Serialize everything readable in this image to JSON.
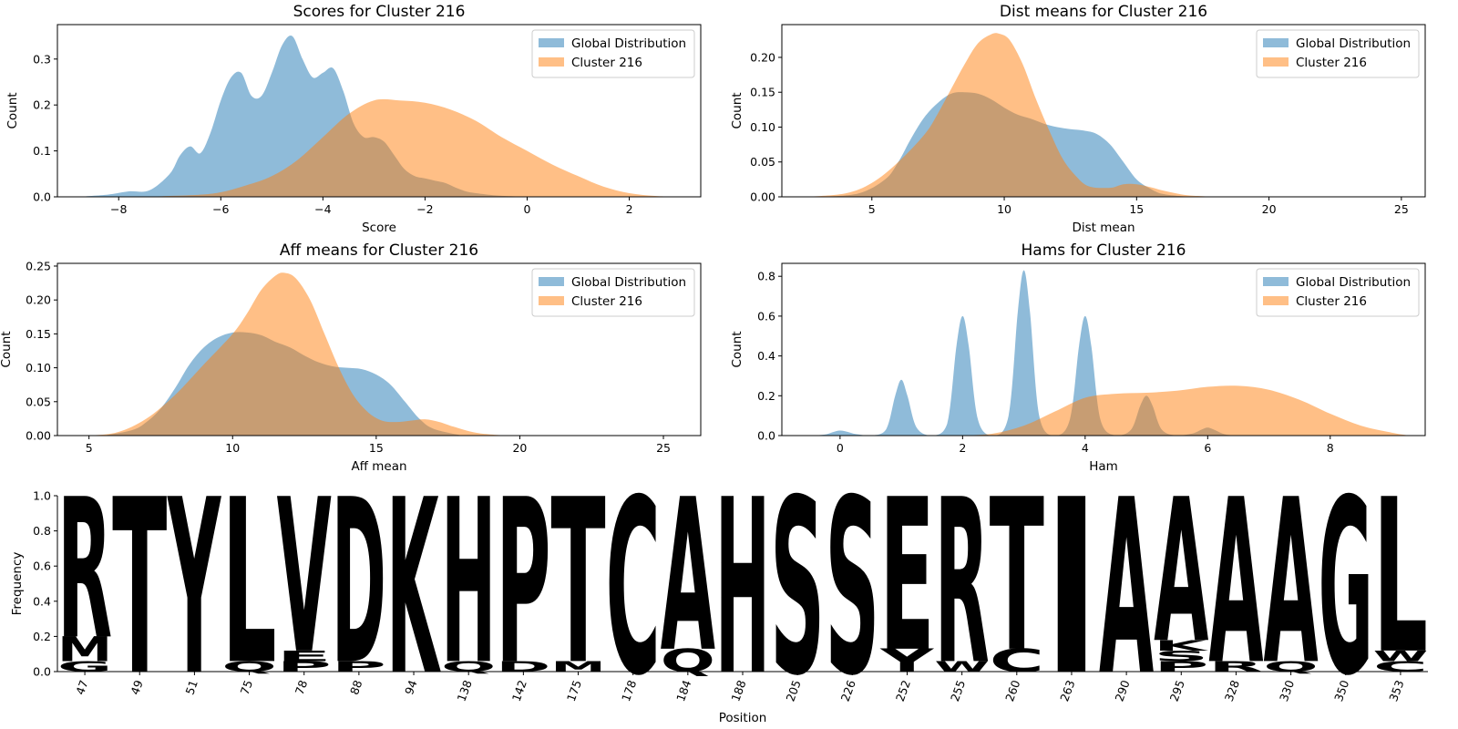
{
  "colors": {
    "global": "#1f77b4",
    "cluster": "#ff7f0e",
    "aa_blue": "#0000ff",
    "aa_green": "#008000",
    "aa_black": "#000000",
    "aa_red": "#ff0000",
    "aa_purple": "#800080"
  },
  "chart_data": [
    {
      "type": "area",
      "title": "Scores for Cluster 216",
      "xlabel": "Score",
      "ylabel": "Count",
      "xlim": [
        -9.2,
        3.4
      ],
      "ylim": [
        0,
        0.375
      ],
      "xticks": [
        -8,
        -6,
        -4,
        -2,
        0,
        2
      ],
      "yticks": [
        0.0,
        0.1,
        0.2,
        0.3
      ],
      "legend": "top-right",
      "series": [
        {
          "name": "Global Distribution",
          "x": [
            -8.8,
            -8.2,
            -7.8,
            -7.4,
            -7.0,
            -6.8,
            -6.6,
            -6.4,
            -6.2,
            -6.0,
            -5.8,
            -5.6,
            -5.4,
            -5.2,
            -5.0,
            -4.8,
            -4.6,
            -4.4,
            -4.2,
            -4.0,
            -3.8,
            -3.6,
            -3.4,
            -3.2,
            -3.0,
            -2.8,
            -2.6,
            -2.4,
            -2.2,
            -2.0,
            -1.8,
            -1.6,
            -1.4,
            -1.2,
            -1.0,
            -0.6,
            0.0
          ],
          "y": [
            0.0,
            0.005,
            0.012,
            0.014,
            0.05,
            0.09,
            0.11,
            0.095,
            0.14,
            0.21,
            0.26,
            0.27,
            0.22,
            0.22,
            0.27,
            0.33,
            0.35,
            0.3,
            0.26,
            0.27,
            0.28,
            0.23,
            0.16,
            0.13,
            0.13,
            0.12,
            0.09,
            0.06,
            0.045,
            0.04,
            0.035,
            0.03,
            0.02,
            0.012,
            0.008,
            0.003,
            0.0
          ]
        },
        {
          "name": "Cluster 216",
          "x": [
            -7.6,
            -6.5,
            -6.0,
            -5.5,
            -5.0,
            -4.5,
            -4.0,
            -3.5,
            -3.0,
            -2.5,
            -2.0,
            -1.5,
            -1.0,
            -0.5,
            0.0,
            0.5,
            1.0,
            1.5,
            2.0,
            2.5,
            3.0
          ],
          "y": [
            0.0,
            0.004,
            0.01,
            0.025,
            0.045,
            0.08,
            0.13,
            0.18,
            0.21,
            0.21,
            0.205,
            0.19,
            0.165,
            0.13,
            0.1,
            0.07,
            0.045,
            0.022,
            0.008,
            0.002,
            0.0
          ]
        }
      ]
    },
    {
      "type": "area",
      "title": "Dist means for Cluster 216",
      "xlabel": "Dist mean",
      "ylabel": "Count",
      "xlim": [
        1.6,
        25.9
      ],
      "ylim": [
        0,
        0.247
      ],
      "xticks": [
        5,
        10,
        15,
        20,
        25
      ],
      "yticks": [
        0.0,
        0.05,
        0.1,
        0.15,
        0.2
      ],
      "legend": "top-right",
      "series": [
        {
          "name": "Global Distribution",
          "x": [
            3.0,
            4.5,
            5.5,
            6.0,
            6.5,
            7.0,
            7.5,
            8.0,
            8.5,
            9.0,
            9.5,
            10.0,
            10.5,
            11.0,
            11.5,
            12.0,
            12.5,
            13.0,
            13.5,
            14.0,
            14.5,
            15.0,
            15.5,
            16.0,
            17.0
          ],
          "y": [
            0.0,
            0.005,
            0.025,
            0.05,
            0.085,
            0.115,
            0.135,
            0.148,
            0.15,
            0.148,
            0.14,
            0.128,
            0.118,
            0.112,
            0.105,
            0.1,
            0.097,
            0.095,
            0.09,
            0.075,
            0.05,
            0.025,
            0.012,
            0.004,
            0.0
          ]
        },
        {
          "name": "Cluster 216",
          "x": [
            2.5,
            4.0,
            5.0,
            6.0,
            7.0,
            7.5,
            8.0,
            8.5,
            9.0,
            9.5,
            9.8,
            10.2,
            10.7,
            11.2,
            11.7,
            12.2,
            12.7,
            13.2,
            14.0,
            14.5,
            15.0,
            15.5,
            16.0,
            16.5,
            17.0,
            18.0
          ],
          "y": [
            0.0,
            0.005,
            0.02,
            0.05,
            0.09,
            0.12,
            0.155,
            0.19,
            0.22,
            0.233,
            0.234,
            0.225,
            0.19,
            0.14,
            0.095,
            0.055,
            0.03,
            0.015,
            0.013,
            0.018,
            0.018,
            0.014,
            0.009,
            0.005,
            0.002,
            0.0
          ]
        }
      ]
    },
    {
      "type": "area",
      "title": "Aff means for Cluster 216",
      "xlabel": "Aff mean",
      "ylabel": "Count",
      "xlim": [
        3.9,
        26.3
      ],
      "ylim": [
        0,
        0.254
      ],
      "xticks": [
        5,
        10,
        15,
        20,
        25
      ],
      "yticks": [
        0.0,
        0.05,
        0.1,
        0.15,
        0.2,
        0.25
      ],
      "legend": "top-right",
      "series": [
        {
          "name": "Global Distribution",
          "x": [
            5.5,
            6.5,
            7.0,
            7.5,
            8.0,
            8.5,
            9.0,
            9.5,
            10.0,
            10.5,
            11.0,
            11.5,
            12.0,
            12.5,
            13.0,
            13.5,
            14.0,
            14.5,
            15.0,
            15.5,
            16.0,
            16.5,
            17.0,
            18.0
          ],
          "y": [
            0.0,
            0.008,
            0.02,
            0.04,
            0.07,
            0.105,
            0.13,
            0.145,
            0.152,
            0.152,
            0.148,
            0.138,
            0.13,
            0.118,
            0.108,
            0.102,
            0.1,
            0.098,
            0.09,
            0.075,
            0.05,
            0.025,
            0.01,
            0.0
          ]
        },
        {
          "name": "Cluster 216",
          "x": [
            5.0,
            6.0,
            7.0,
            8.0,
            9.0,
            10.0,
            10.5,
            11.0,
            11.5,
            11.8,
            12.2,
            12.7,
            13.2,
            13.7,
            14.2,
            14.7,
            15.2,
            15.7,
            16.2,
            16.7,
            17.2,
            17.7,
            18.5,
            19.5
          ],
          "y": [
            0.0,
            0.005,
            0.025,
            0.06,
            0.105,
            0.15,
            0.18,
            0.215,
            0.236,
            0.24,
            0.232,
            0.2,
            0.15,
            0.1,
            0.06,
            0.035,
            0.022,
            0.02,
            0.022,
            0.024,
            0.02,
            0.013,
            0.004,
            0.0
          ]
        }
      ]
    },
    {
      "type": "area",
      "title": "Hams for Cluster 216",
      "xlabel": "Ham",
      "ylabel": "Count",
      "xlim": [
        -0.95,
        9.55
      ],
      "ylim": [
        0,
        0.865
      ],
      "xticks": [
        0,
        2,
        4,
        6,
        8
      ],
      "yticks": [
        0.0,
        0.2,
        0.4,
        0.6,
        0.8
      ],
      "legend": "top-right",
      "series": [
        {
          "name": "Global Distribution",
          "x": [
            -0.5,
            -0.25,
            0.0,
            0.25,
            0.5,
            0.75,
            0.9,
            1.0,
            1.1,
            1.25,
            1.5,
            1.75,
            1.9,
            2.0,
            2.1,
            2.25,
            2.5,
            2.75,
            2.9,
            3.0,
            3.1,
            3.25,
            3.5,
            3.75,
            3.9,
            4.0,
            4.1,
            4.25,
            4.5,
            4.75,
            4.9,
            5.0,
            5.1,
            5.25,
            5.5,
            5.75,
            5.9,
            6.0,
            6.1,
            6.3,
            6.6
          ],
          "y": [
            0.0,
            0.005,
            0.025,
            0.008,
            0.0,
            0.03,
            0.2,
            0.28,
            0.2,
            0.04,
            0.0,
            0.06,
            0.45,
            0.6,
            0.45,
            0.08,
            0.0,
            0.1,
            0.62,
            0.83,
            0.62,
            0.1,
            0.0,
            0.08,
            0.45,
            0.6,
            0.45,
            0.08,
            0.0,
            0.03,
            0.15,
            0.2,
            0.15,
            0.03,
            0.0,
            0.01,
            0.03,
            0.04,
            0.03,
            0.005,
            0.0
          ]
        },
        {
          "name": "Cluster 216",
          "x": [
            2.0,
            2.5,
            3.0,
            3.5,
            4.0,
            4.5,
            5.0,
            5.5,
            6.0,
            6.5,
            7.0,
            7.5,
            8.0,
            8.5,
            9.0,
            9.3
          ],
          "y": [
            0.0,
            0.01,
            0.05,
            0.12,
            0.19,
            0.21,
            0.215,
            0.225,
            0.245,
            0.25,
            0.23,
            0.18,
            0.11,
            0.05,
            0.015,
            0.0
          ]
        }
      ]
    },
    {
      "type": "sequence-logo",
      "xlabel": "Position",
      "ylabel": "Frequency",
      "ylim": [
        0,
        1.0
      ],
      "yticks": [
        0.0,
        0.2,
        0.4,
        0.6,
        0.8,
        1.0
      ],
      "positions": [
        "47",
        "49",
        "51",
        "75",
        "78",
        "88",
        "94",
        "138",
        "142",
        "175",
        "178",
        "184",
        "188",
        "205",
        "226",
        "252",
        "255",
        "260",
        "263",
        "290",
        "295",
        "328",
        "330",
        "350",
        "353"
      ],
      "columns": [
        [
          {
            "aa": "G",
            "f": 0.06,
            "c": "aa_green"
          },
          {
            "aa": "M",
            "f": 0.14,
            "c": "aa_black"
          },
          {
            "aa": "R",
            "f": 0.8,
            "c": "aa_blue"
          }
        ],
        [
          {
            "aa": "T",
            "f": 1.0,
            "c": "aa_green"
          }
        ],
        [
          {
            "aa": "Y",
            "f": 1.0,
            "c": "aa_green"
          }
        ],
        [
          {
            "aa": "Q",
            "f": 0.06,
            "c": "aa_purple"
          },
          {
            "aa": "L",
            "f": 0.94,
            "c": "aa_black"
          }
        ],
        [
          {
            "aa": "P",
            "f": 0.06,
            "c": "aa_black"
          },
          {
            "aa": "E",
            "f": 0.06,
            "c": "aa_red"
          },
          {
            "aa": "V",
            "f": 0.88,
            "c": "aa_black"
          }
        ],
        [
          {
            "aa": "P",
            "f": 0.06,
            "c": "aa_black"
          },
          {
            "aa": "D",
            "f": 0.94,
            "c": "aa_red"
          }
        ],
        [
          {
            "aa": "K",
            "f": 1.0,
            "c": "aa_blue"
          }
        ],
        [
          {
            "aa": "Q",
            "f": 0.06,
            "c": "aa_purple"
          },
          {
            "aa": "H",
            "f": 0.94,
            "c": "aa_blue"
          }
        ],
        [
          {
            "aa": "D",
            "f": 0.06,
            "c": "aa_red"
          },
          {
            "aa": "P",
            "f": 0.94,
            "c": "aa_black"
          }
        ],
        [
          {
            "aa": "M",
            "f": 0.06,
            "c": "aa_black"
          },
          {
            "aa": "T",
            "f": 0.94,
            "c": "aa_green"
          }
        ],
        [
          {
            "aa": "C",
            "f": 1.0,
            "c": "aa_green"
          }
        ],
        [
          {
            "aa": "Q",
            "f": 0.13,
            "c": "aa_purple"
          },
          {
            "aa": "A",
            "f": 0.87,
            "c": "aa_black"
          }
        ],
        [
          {
            "aa": "H",
            "f": 1.0,
            "c": "aa_blue"
          }
        ],
        [
          {
            "aa": "S",
            "f": 1.0,
            "c": "aa_green"
          }
        ],
        [
          {
            "aa": "S",
            "f": 1.0,
            "c": "aa_green"
          }
        ],
        [
          {
            "aa": "Y",
            "f": 0.13,
            "c": "aa_green"
          },
          {
            "aa": "E",
            "f": 0.87,
            "c": "aa_red"
          }
        ],
        [
          {
            "aa": "W",
            "f": 0.06,
            "c": "aa_black"
          },
          {
            "aa": "R",
            "f": 0.94,
            "c": "aa_blue"
          }
        ],
        [
          {
            "aa": "C",
            "f": 0.13,
            "c": "aa_green"
          },
          {
            "aa": "T",
            "f": 0.87,
            "c": "aa_green"
          }
        ],
        [
          {
            "aa": "I",
            "f": 1.0,
            "c": "aa_black"
          }
        ],
        [
          {
            "aa": "A",
            "f": 1.0,
            "c": "aa_black"
          }
        ],
        [
          {
            "aa": "P",
            "f": 0.06,
            "c": "aa_black"
          },
          {
            "aa": "S",
            "f": 0.06,
            "c": "aa_green"
          },
          {
            "aa": "K",
            "f": 0.06,
            "c": "aa_blue"
          },
          {
            "aa": "A",
            "f": 0.82,
            "c": "aa_black"
          }
        ],
        [
          {
            "aa": "R",
            "f": 0.06,
            "c": "aa_blue"
          },
          {
            "aa": "A",
            "f": 0.94,
            "c": "aa_black"
          }
        ],
        [
          {
            "aa": "Q",
            "f": 0.06,
            "c": "aa_purple"
          },
          {
            "aa": "A",
            "f": 0.94,
            "c": "aa_black"
          }
        ],
        [
          {
            "aa": "G",
            "f": 1.0,
            "c": "aa_green"
          }
        ],
        [
          {
            "aa": "C",
            "f": 0.06,
            "c": "aa_green"
          },
          {
            "aa": "W",
            "f": 0.06,
            "c": "aa_black"
          },
          {
            "aa": "L",
            "f": 0.88,
            "c": "aa_black"
          }
        ]
      ]
    }
  ]
}
